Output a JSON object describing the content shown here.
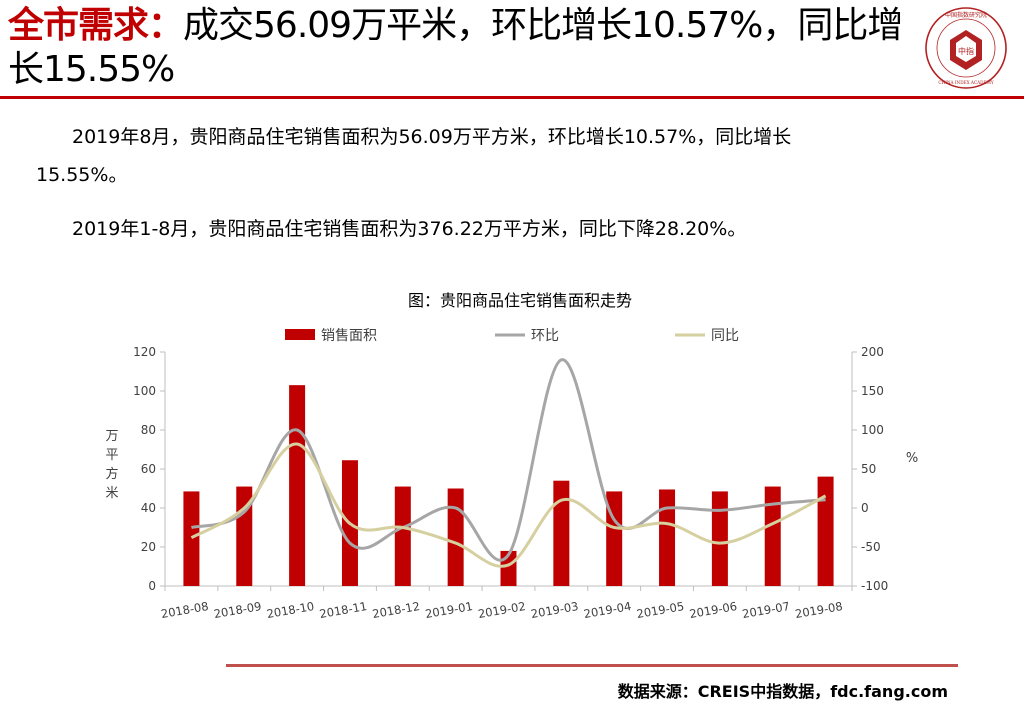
{
  "header": {
    "highlight": "全市需求：",
    "title_rest": "成交56.09万平米，环比增长10.57%，同比增长15.55%"
  },
  "logo": {
    "top_text": "中国指数研究院",
    "center_text": "中指",
    "bottom_text": "CHINA INDEX ACADEMY",
    "color": "#b22222"
  },
  "body": {
    "para1_line1": "2019年8月，贵阳商品住宅销售面积为56.09万平方米，环比增长10.57%，同比增长",
    "para1_line2": "15.55%。",
    "para2": "2019年1-8月，贵阳商品住宅销售面积为376.22万平方米，同比下降28.20%。"
  },
  "chart_data": {
    "type": "bar",
    "title": "图：贵阳商品住宅销售面积走势",
    "categories": [
      "2018-08",
      "2018-09",
      "2018-10",
      "2018-11",
      "2018-12",
      "2019-01",
      "2019-02",
      "2019-03",
      "2019-04",
      "2019-05",
      "2019-06",
      "2019-07",
      "2019-08"
    ],
    "series": [
      {
        "name": "销售面积",
        "axis": "left",
        "type": "bar",
        "color": "#c00000",
        "values": [
          48.5,
          51,
          103,
          64.5,
          51,
          50,
          18,
          54,
          48.5,
          49.5,
          48.5,
          51,
          56.09
        ]
      },
      {
        "name": "环比",
        "axis": "right",
        "type": "line",
        "color": "#a6a6a6",
        "values": [
          -25,
          -5,
          100,
          -45,
          -25,
          0,
          -60,
          190,
          -15,
          0,
          -3,
          5,
          10.57
        ]
      },
      {
        "name": "同比",
        "axis": "right",
        "type": "line",
        "color": "#d6cfa0",
        "values": [
          -38,
          0,
          82,
          -20,
          -25,
          -45,
          -73,
          10,
          -25,
          -20,
          -45,
          -20,
          15.55
        ]
      }
    ],
    "ylabel": "万平方米",
    "y2label": "%",
    "ylim": [
      0,
      120
    ],
    "y2lim": [
      -100,
      200
    ],
    "yticks": [
      "0",
      "20",
      "40",
      "60",
      "80",
      "100",
      "120"
    ],
    "y2ticks": [
      "-100",
      "-50",
      "0",
      "50",
      "100",
      "150",
      "200"
    ],
    "legend_position": "top",
    "grid": false
  },
  "footer": {
    "source": "数据来源：CREIS中指数据，fdc.fang.com"
  }
}
